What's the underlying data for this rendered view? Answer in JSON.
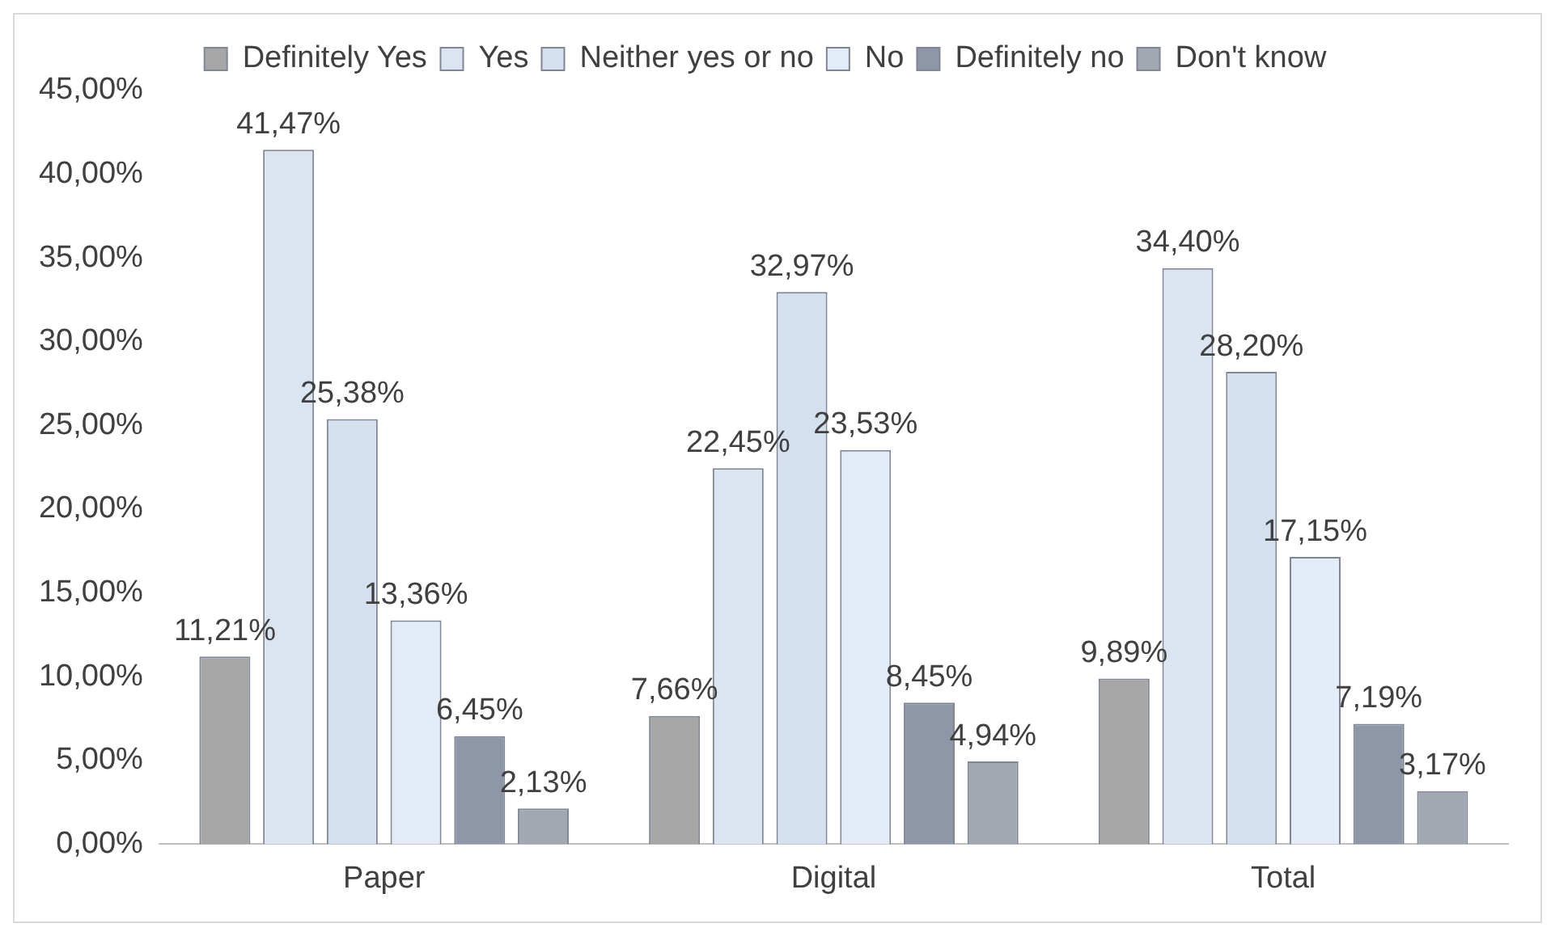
{
  "chart_data": {
    "type": "bar",
    "categories": [
      "Paper",
      "Digital",
      "Total"
    ],
    "series": [
      {
        "name": "Definitely Yes",
        "color": "#a6a6a6",
        "values": [
          11.21,
          7.66,
          9.89
        ],
        "value_labels": [
          "11,21%",
          "7,66%",
          "9,89%"
        ]
      },
      {
        "name": "Yes",
        "color": "#dbe5f1",
        "values": [
          41.47,
          22.45,
          34.4
        ],
        "value_labels": [
          "41,47%",
          "22,45%",
          "34,40%"
        ]
      },
      {
        "name": "Neither yes or no",
        "color": "#d5e0ee",
        "values": [
          25.38,
          32.97,
          28.2
        ],
        "value_labels": [
          "25,38%",
          "32,97%",
          "28,20%"
        ]
      },
      {
        "name": "No",
        "color": "#e3ebf6",
        "values": [
          13.36,
          23.53,
          17.15
        ],
        "value_labels": [
          "13,36%",
          "23,53%",
          "17,15%"
        ]
      },
      {
        "name": "Definitely no",
        "color": "#8e97a7",
        "values": [
          6.45,
          8.45,
          7.19
        ],
        "value_labels": [
          "6,45%",
          "8,45%",
          "7,19%"
        ]
      },
      {
        "name": "Don't know",
        "color": "#a2a8b2",
        "values": [
          2.13,
          4.94,
          3.17
        ],
        "value_labels": [
          "2,13%",
          "4,94%",
          "3,17%"
        ]
      }
    ],
    "ylim": [
      0,
      45
    ],
    "yticks": [
      {
        "value": 0,
        "label": "0,00%"
      },
      {
        "value": 5,
        "label": "5,00%"
      },
      {
        "value": 10,
        "label": "10,00%"
      },
      {
        "value": 15,
        "label": "15,00%"
      },
      {
        "value": 20,
        "label": "20,00%"
      },
      {
        "value": 25,
        "label": "25,00%"
      },
      {
        "value": 30,
        "label": "30,00%"
      },
      {
        "value": 35,
        "label": "35,00%"
      },
      {
        "value": 40,
        "label": "40,00%"
      },
      {
        "value": 45,
        "label": "45,00%"
      }
    ],
    "grid": false,
    "legend": "top"
  }
}
